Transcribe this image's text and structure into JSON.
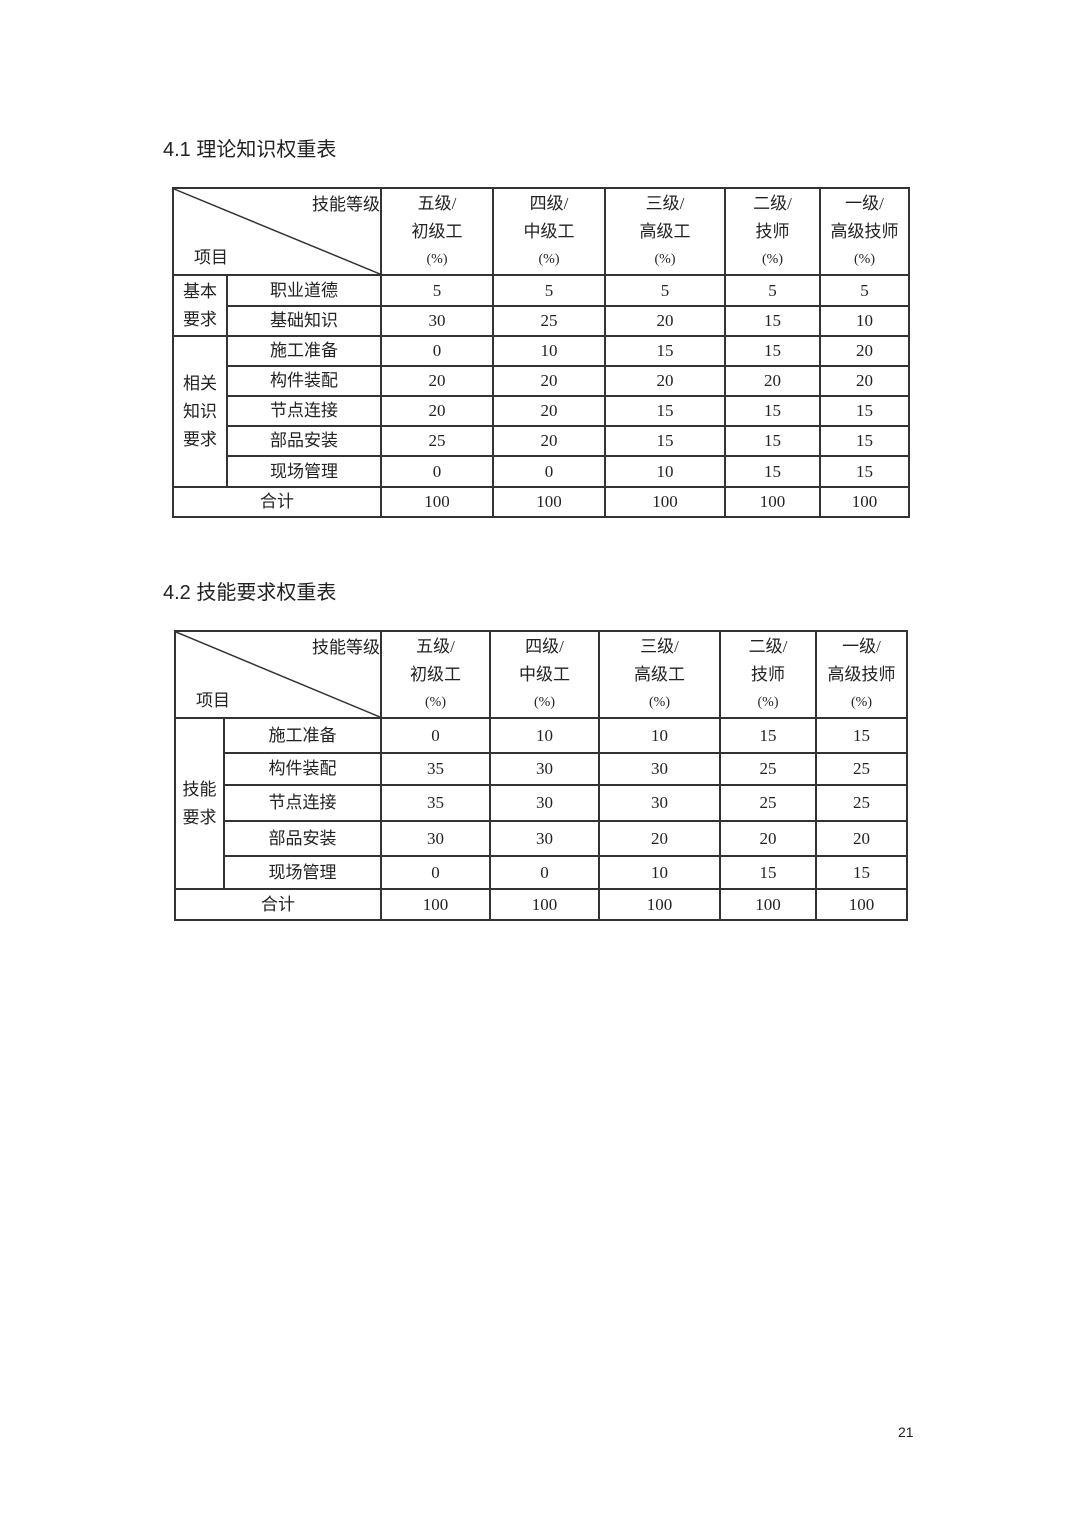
{
  "t1": {
    "title": "4.1  理论知识权重表",
    "corner_top": "技能等级",
    "corner_bottom": "项目",
    "levels": [
      [
        "五级/",
        "初级工",
        "(%)"
      ],
      [
        "四级/",
        "中级工",
        "(%)"
      ],
      [
        "三级/",
        "高级工",
        "(%)"
      ],
      [
        "二级/",
        "技师",
        "(%)"
      ],
      [
        "一级/",
        "高级技师",
        "(%)"
      ]
    ],
    "groups": [
      {
        "label": "基本\n要求",
        "rows": [
          [
            "职业道德",
            "5",
            "5",
            "5",
            "5",
            "5"
          ],
          [
            "基础知识",
            "30",
            "25",
            "20",
            "15",
            "10"
          ]
        ]
      },
      {
        "label": "相关\n知识\n要求",
        "rows": [
          [
            "施工准备",
            "0",
            "10",
            "15",
            "15",
            "20"
          ],
          [
            "构件装配",
            "20",
            "20",
            "20",
            "20",
            "20"
          ],
          [
            "节点连接",
            "20",
            "20",
            "15",
            "15",
            "15"
          ],
          [
            "部品安装",
            "25",
            "20",
            "15",
            "15",
            "15"
          ],
          [
            "现场管理",
            "0",
            "0",
            "10",
            "15",
            "15"
          ]
        ]
      }
    ],
    "total": [
      "合计",
      "100",
      "100",
      "100",
      "100",
      "100"
    ]
  },
  "t2": {
    "title": "4.2  技能要求权重表",
    "corner_top": "技能等级",
    "corner_bottom": "项目",
    "levels": [
      [
        "五级/",
        "初级工",
        "(%)"
      ],
      [
        "四级/",
        "中级工",
        "(%)"
      ],
      [
        "三级/",
        "高级工",
        "(%)"
      ],
      [
        "二级/",
        "技师",
        "(%)"
      ],
      [
        "一级/",
        "高级技师",
        "(%)"
      ]
    ],
    "groups": [
      {
        "label": "技能\n要求",
        "rows": [
          [
            "施工准备",
            "0",
            "10",
            "10",
            "15",
            "15"
          ],
          [
            "构件装配",
            "35",
            "30",
            "30",
            "25",
            "25"
          ],
          [
            "节点连接",
            "35",
            "30",
            "30",
            "25",
            "25"
          ],
          [
            "部品安装",
            "30",
            "30",
            "20",
            "20",
            "20"
          ],
          [
            "现场管理",
            "0",
            "0",
            "10",
            "15",
            "15"
          ]
        ]
      }
    ],
    "total": [
      "合计",
      "100",
      "100",
      "100",
      "100",
      "100"
    ]
  },
  "page_number": "21"
}
